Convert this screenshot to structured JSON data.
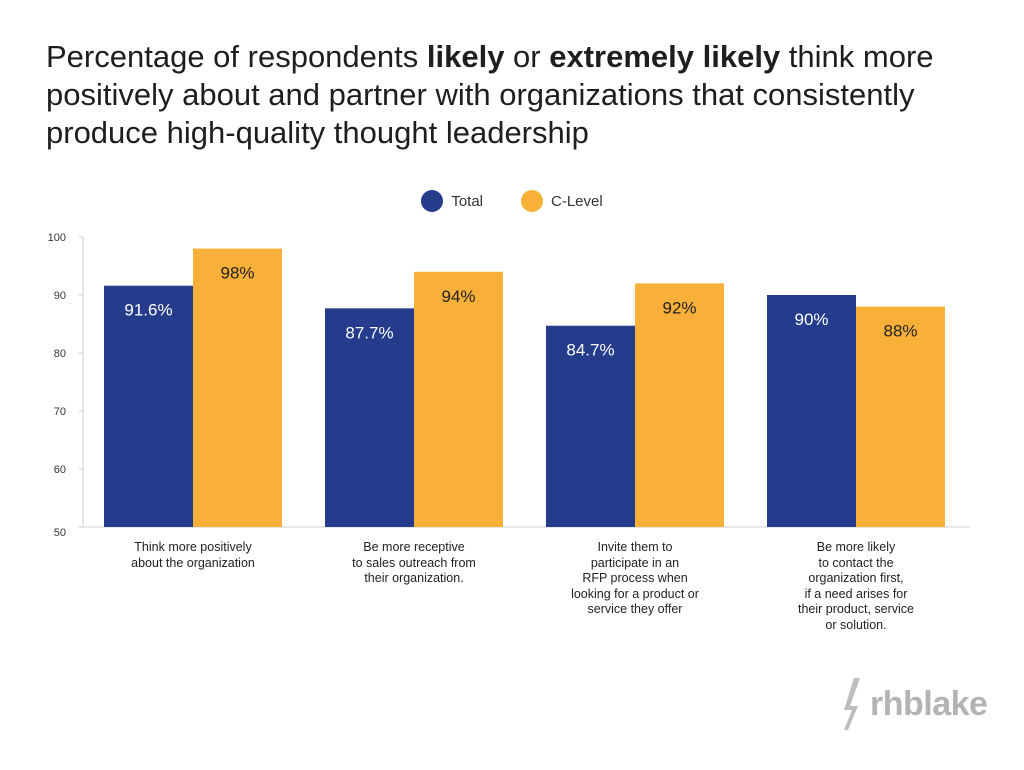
{
  "title": {
    "prefix": "Percentage of respondents ",
    "bold1": "likely",
    "mid": " or ",
    "bold2": "extremely likely",
    "suffix": " think more positively about and partner with organizations that consistently produce high-quality thought leadership"
  },
  "colors": {
    "total": "#253C8C",
    "clevel": "#F9B038"
  },
  "chart_data": {
    "type": "bar",
    "title": "Percentage of respondents likely or extremely likely think more positively about and partner with organizations that consistently produce high-quality thought leadership",
    "categories": [
      "Think more positively\nabout the organization",
      "Be more receptive\nto sales outreach from\ntheir organization.",
      "Invite them to\nparticipate in an\nRFP process when\nlooking for a product or\nservice they offer",
      "Be more likely\nto contact the\norganization first,\nif a need arises for\ntheir product, service\nor solution."
    ],
    "series": [
      {
        "name": "Total",
        "values": [
          91.6,
          87.7,
          84.7,
          90
        ],
        "labels": [
          "91.6%",
          "87.7%",
          "84.7%",
          "90%"
        ]
      },
      {
        "name": "C-Level",
        "values": [
          98,
          94,
          92,
          88
        ],
        "labels": [
          "98%",
          "94%",
          "92%",
          "88%"
        ]
      }
    ],
    "ylim": [
      50,
      100
    ],
    "yticks": [
      "100",
      "90",
      "80",
      "70",
      "60",
      "50"
    ],
    "xlabel": "",
    "ylabel": "",
    "legend_position": "top-center",
    "grid": false
  },
  "logo": {
    "text": "rhblake"
  }
}
